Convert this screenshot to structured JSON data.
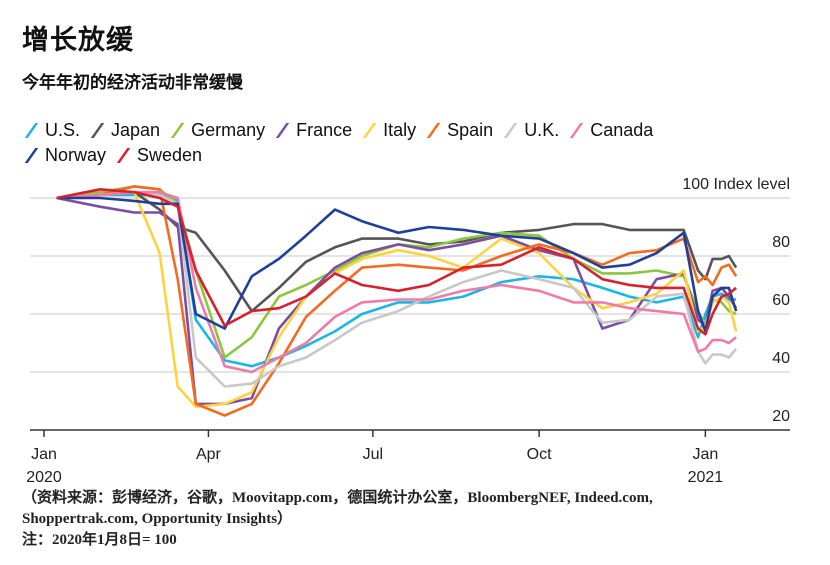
{
  "title": "增长放缓",
  "subtitle": "今年年初的经济活动非常缓慢",
  "source": "（资料来源：彭博经济，谷歌，Moovitapp.com，德国统计办公室，BloombergNEF, Indeed.com, Shoppertrak.com, Opportunity Insights）",
  "note": "注：2020年1月8日= 100",
  "chart_data": {
    "type": "line",
    "title": "增长放缓",
    "subtitle": "今年年初的经济活动非常缓慢",
    "ylabel": "100 Index level",
    "ylim": [
      20,
      100
    ],
    "yticks": [
      20,
      40,
      60,
      80,
      100
    ],
    "ytick_labels": [
      "20",
      "40",
      "60",
      "80",
      "100 Index level"
    ],
    "xticks": [
      {
        "date": "2020-01-01",
        "label": "Jan",
        "sublabel": "2020"
      },
      {
        "date": "2020-04-01",
        "label": "Apr",
        "sublabel": ""
      },
      {
        "date": "2020-07-01",
        "label": "Jul",
        "sublabel": ""
      },
      {
        "date": "2020-10-01",
        "label": "Oct",
        "sublabel": ""
      },
      {
        "date": "2021-01-01",
        "label": "Jan",
        "sublabel": "2021"
      }
    ],
    "grid": true,
    "legend": "top-left",
    "x": [
      "2020-01-08",
      "2020-02-01",
      "2020-02-20",
      "2020-03-05",
      "2020-03-15",
      "2020-03-25",
      "2020-04-10",
      "2020-04-25",
      "2020-05-10",
      "2020-05-25",
      "2020-06-10",
      "2020-06-25",
      "2020-07-15",
      "2020-08-01",
      "2020-08-20",
      "2020-09-10",
      "2020-10-01",
      "2020-10-20",
      "2020-11-05",
      "2020-11-20",
      "2020-12-05",
      "2020-12-20",
      "2020-12-28",
      "2021-01-01",
      "2021-01-05",
      "2021-01-10",
      "2021-01-14",
      "2021-01-18"
    ],
    "series": [
      {
        "name": "U.S.",
        "color": "#1ab7e6",
        "values": [
          100,
          101,
          101,
          101,
          99,
          58,
          44,
          42,
          45,
          49,
          54,
          60,
          64,
          64,
          66,
          71,
          73,
          72,
          69,
          66,
          64,
          66,
          52,
          60,
          66,
          67,
          65,
          65
        ]
      },
      {
        "name": "Japan",
        "color": "#555555",
        "values": [
          100,
          101,
          102,
          96,
          90,
          88,
          75,
          61,
          69,
          78,
          83,
          86,
          86,
          84,
          85,
          88,
          89,
          91,
          91,
          89,
          89,
          89,
          75,
          72,
          79,
          79,
          80,
          76
        ]
      },
      {
        "name": "Germany",
        "color": "#8cc63f",
        "values": [
          100,
          102,
          104,
          103,
          98,
          75,
          45,
          52,
          66,
          70,
          75,
          80,
          84,
          83,
          86,
          88,
          87,
          79,
          74,
          74,
          75,
          73,
          61,
          56,
          65,
          64,
          61,
          60
        ]
      },
      {
        "name": "France",
        "color": "#7b4ea3",
        "values": [
          100,
          97,
          95,
          95,
          91,
          29,
          29,
          31,
          55,
          66,
          76,
          81,
          84,
          82,
          84,
          87,
          82,
          79,
          55,
          58,
          72,
          74,
          58,
          56,
          68,
          69,
          66,
          62
        ]
      },
      {
        "name": "Italy",
        "color": "#ffd23f",
        "values": [
          100,
          101,
          102,
          81,
          35,
          28,
          29,
          33,
          52,
          66,
          74,
          79,
          82,
          80,
          76,
          86,
          81,
          69,
          62,
          64,
          67,
          75,
          54,
          56,
          64,
          66,
          64,
          54
        ]
      },
      {
        "name": "Spain",
        "color": "#f26b21",
        "values": [
          100,
          101,
          104,
          103,
          72,
          29,
          25,
          29,
          43,
          59,
          68,
          76,
          77,
          76,
          75,
          80,
          84,
          81,
          77,
          81,
          82,
          86,
          71,
          73,
          70,
          76,
          77,
          73
        ]
      },
      {
        "name": "U.K.",
        "color": "#c8c8c8",
        "values": [
          100,
          101,
          102,
          101,
          98,
          45,
          35,
          36,
          42,
          45,
          51,
          57,
          61,
          66,
          71,
          75,
          72,
          69,
          57,
          58,
          66,
          67,
          47,
          43,
          46,
          46,
          45,
          48
        ]
      },
      {
        "name": "Canada",
        "color": "#f07aa8",
        "values": [
          100,
          101,
          102,
          102,
          100,
          69,
          42,
          40,
          45,
          50,
          59,
          64,
          65,
          65,
          68,
          70,
          68,
          64,
          64,
          62,
          61,
          60,
          47,
          48,
          51,
          51,
          50,
          52
        ]
      },
      {
        "name": "Norway",
        "color": "#1f3f99",
        "values": [
          100,
          100,
          99,
          98,
          98,
          60,
          55,
          73,
          79,
          87,
          96,
          92,
          88,
          90,
          89,
          87,
          86,
          81,
          76,
          77,
          81,
          88,
          61,
          54,
          66,
          69,
          69,
          61
        ]
      },
      {
        "name": "Sweden",
        "color": "#d7212f",
        "values": [
          100,
          103,
          102,
          100,
          97,
          75,
          56,
          61,
          62,
          66,
          74,
          70,
          68,
          70,
          76,
          77,
          83,
          79,
          72,
          70,
          69,
          69,
          55,
          53,
          60,
          66,
          67,
          69
        ]
      }
    ]
  }
}
